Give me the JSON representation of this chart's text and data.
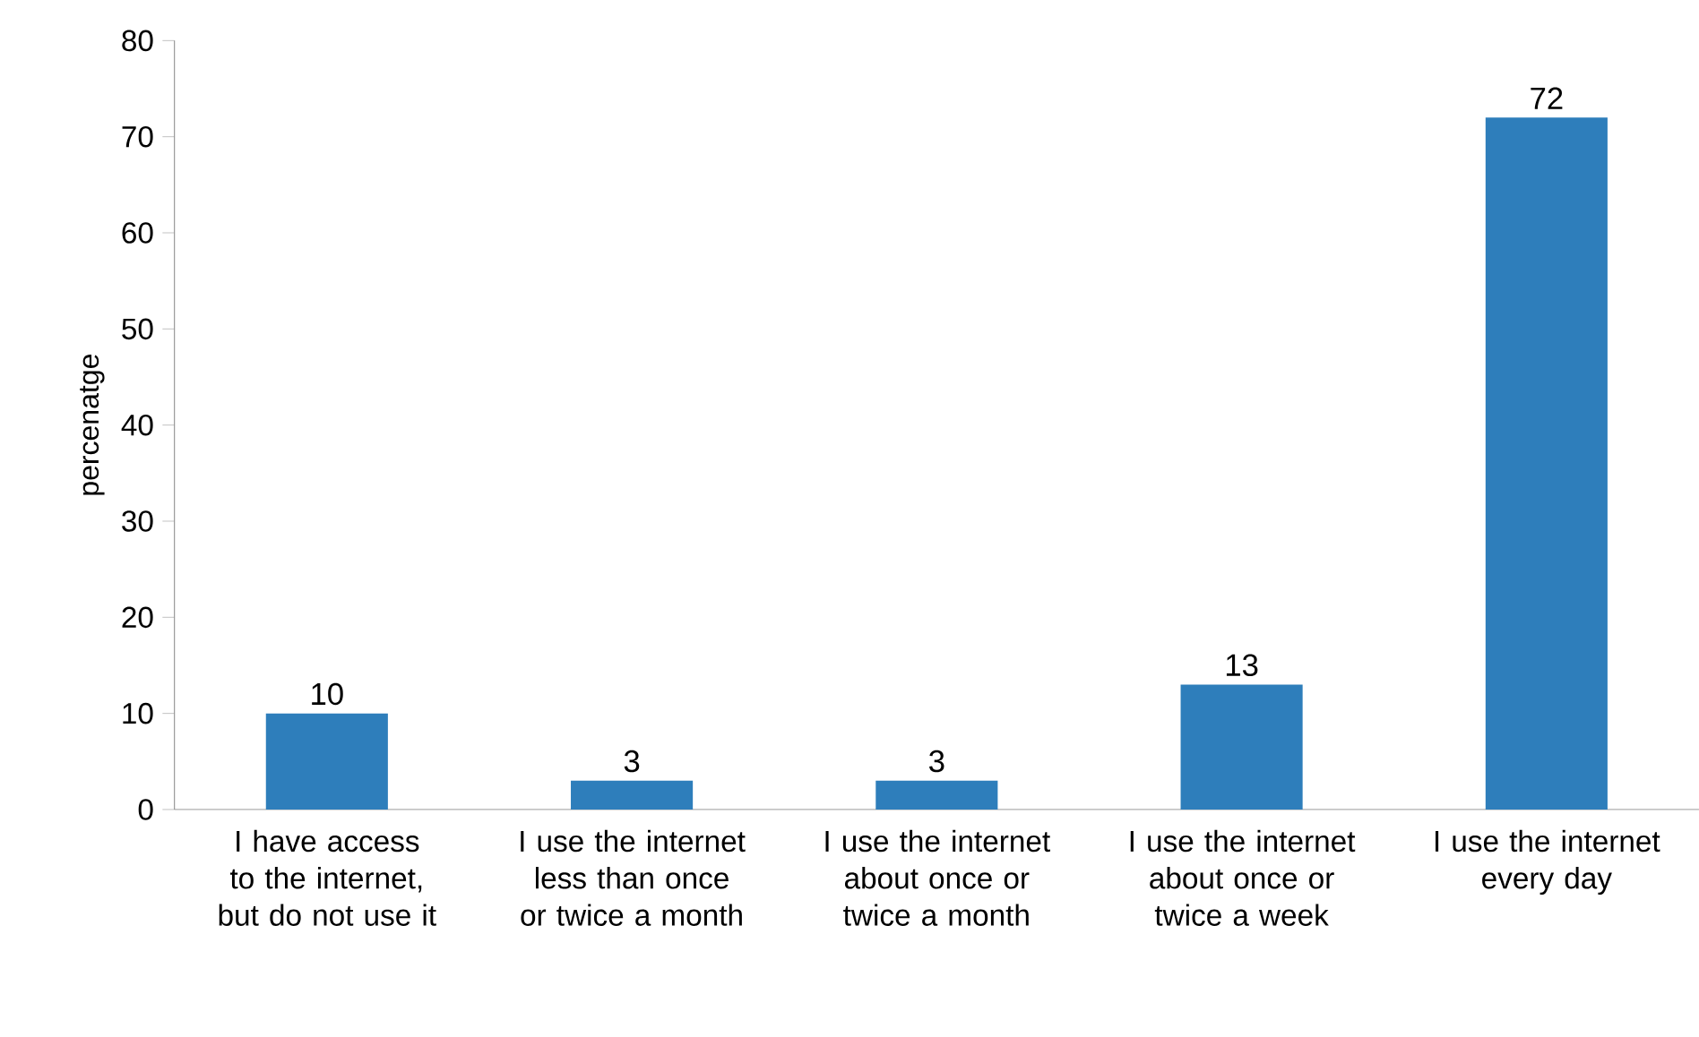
{
  "chart_data": {
    "type": "bar",
    "ylabel": "percenatge",
    "categories": [
      "I have access to the internet, but do not use it",
      "I use the internet less than once or twice a month",
      "I use the internet about once or twice a month",
      "I use the internet about once or twice a week",
      "I use the internet every day"
    ],
    "values": [
      10,
      3,
      3,
      13,
      72
    ],
    "color": "#2e7ebb",
    "ylim": [
      0,
      80
    ],
    "yticks": [
      0,
      10,
      20,
      30,
      40,
      50,
      60,
      70,
      80
    ],
    "data_labels": true
  }
}
